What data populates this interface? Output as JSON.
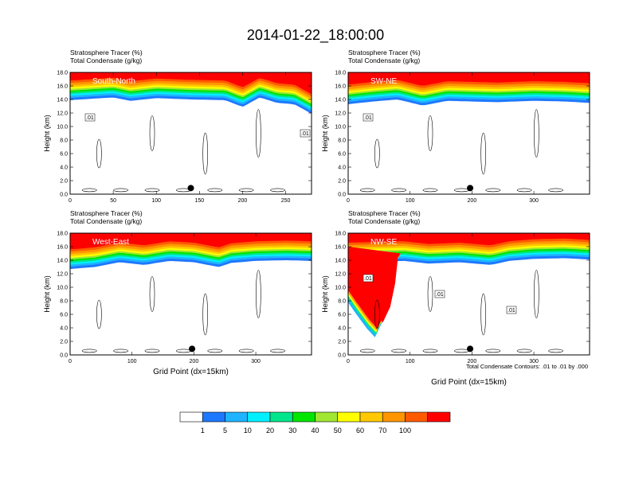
{
  "title": "2014-01-22_18:00:00",
  "footnote": "Total Condensate Contours: .01 to .01 by .000",
  "chart_data": {
    "type": "heatmap",
    "colorbar": {
      "levels": [
        "1",
        "5",
        "10",
        "20",
        "30",
        "40",
        "50",
        "60",
        "70",
        "100"
      ],
      "colors": [
        "#ffffff",
        "#1e78ff",
        "#1eb4ff",
        "#00f0ff",
        "#00e68c",
        "#00e600",
        "#a0e632",
        "#ffff00",
        "#ffc800",
        "#ff9600",
        "#ff5a00",
        "#ff0000"
      ]
    },
    "panels": [
      {
        "name": "South-North",
        "header1": "Stratosphere Tracer   (%)",
        "header2": "Total Condensate   (g/kg)",
        "xlabel": "",
        "ylabel": "Height (km)",
        "xlim": [
          0,
          280
        ],
        "xticks": [
          "0",
          "50",
          "100",
          "150",
          "200",
          "250"
        ],
        "xtick_values": [
          0,
          50,
          100,
          150,
          200,
          250
        ],
        "ylim": [
          0,
          18
        ],
        "yticks": [
          "0.0",
          "2.0",
          "4.0",
          "6.0",
          "8.0",
          "10.0",
          "12.0",
          "14.0",
          "16.0",
          "18.0"
        ],
        "tropopause_km": [
          [
            0,
            15.2
          ],
          [
            25,
            15.4
          ],
          [
            50,
            15.6
          ],
          [
            70,
            15.1
          ],
          [
            100,
            15.5
          ],
          [
            140,
            15.3
          ],
          [
            180,
            15.2
          ],
          [
            200,
            14.2
          ],
          [
            220,
            15.6
          ],
          [
            240,
            14.8
          ],
          [
            260,
            14.6
          ],
          [
            280,
            13.2
          ]
        ],
        "contour_labels": [
          ".01",
          ".01"
        ],
        "marker_x": 140
      },
      {
        "name": "SW-NE",
        "header1": "Stratosphere Tracer   (%)",
        "header2": "Total Condensate   (g/kg)",
        "xlabel": "",
        "ylabel": "Height (km)",
        "xlim": [
          0,
          390
        ],
        "xticks": [
          "0",
          "100",
          "200",
          "300"
        ],
        "xtick_values": [
          0,
          100,
          200,
          300
        ],
        "ylim": [
          0,
          18
        ],
        "yticks": [
          "0.0",
          "2.0",
          "4.0",
          "6.0",
          "8.0",
          "10.0",
          "12.0",
          "14.0",
          "16.0",
          "18.0"
        ],
        "tropopause_km": [
          [
            0,
            14.6
          ],
          [
            40,
            15.0
          ],
          [
            80,
            15.3
          ],
          [
            120,
            14.4
          ],
          [
            160,
            15.1
          ],
          [
            200,
            15.0
          ],
          [
            240,
            14.9
          ],
          [
            300,
            15.1
          ],
          [
            350,
            15.0
          ],
          [
            390,
            14.8
          ]
        ],
        "contour_labels": [
          ".01"
        ],
        "marker_x": 197
      },
      {
        "name": "West-East",
        "header1": "Stratosphere Tracer   (%)",
        "header2": "Total Condensate   (g/kg)",
        "xlabel": "Grid Point (dx=15km)",
        "ylabel": "Height (km)",
        "xlim": [
          0,
          390
        ],
        "xticks": [
          "0",
          "100",
          "200",
          "300"
        ],
        "xtick_values": [
          0,
          100,
          200,
          300
        ],
        "ylim": [
          0,
          18
        ],
        "yticks": [
          "0.0",
          "2.0",
          "4.0",
          "6.0",
          "8.0",
          "10.0",
          "12.0",
          "14.0",
          "16.0",
          "18.0"
        ],
        "tropopause_km": [
          [
            0,
            14.0
          ],
          [
            40,
            14.3
          ],
          [
            80,
            15.0
          ],
          [
            120,
            14.6
          ],
          [
            160,
            15.2
          ],
          [
            200,
            15.0
          ],
          [
            240,
            14.3
          ],
          [
            260,
            14.9
          ],
          [
            300,
            15.2
          ],
          [
            350,
            15.3
          ],
          [
            390,
            15.2
          ]
        ],
        "contour_labels": [],
        "marker_x": 197
      },
      {
        "name": "NW-SE",
        "header1": "Stratosphere Tracer   (%)",
        "header2": "Total Condensate   (g/kg)",
        "xlabel": "Grid Point (dx=15km)",
        "ylabel": "Height (km)",
        "xlim": [
          0,
          390
        ],
        "xticks": [
          "0",
          "100",
          "200",
          "300"
        ],
        "xtick_values": [
          0,
          100,
          200,
          300
        ],
        "ylim": [
          0,
          18
        ],
        "yticks": [
          "0.0",
          "2.0",
          "4.0",
          "6.0",
          "8.0",
          "10.0",
          "12.0",
          "14.0",
          "16.0",
          "18.0"
        ],
        "tropopause_km": [
          [
            0,
            15.0
          ],
          [
            90,
            15.2
          ],
          [
            130,
            14.8
          ],
          [
            180,
            15.0
          ],
          [
            230,
            14.6
          ],
          [
            260,
            15.2
          ],
          [
            300,
            15.5
          ],
          [
            350,
            15.6
          ],
          [
            390,
            15.4
          ]
        ],
        "intrusion_km": [
          [
            0,
            10.0
          ],
          [
            15,
            8.0
          ],
          [
            35,
            5.5
          ],
          [
            48,
            4.2
          ],
          [
            60,
            6.5
          ],
          [
            68,
            10.0
          ],
          [
            72,
            13.5
          ]
        ],
        "contour_labels": [
          ".01",
          ".01",
          ".01"
        ],
        "marker_x": 197
      }
    ]
  }
}
